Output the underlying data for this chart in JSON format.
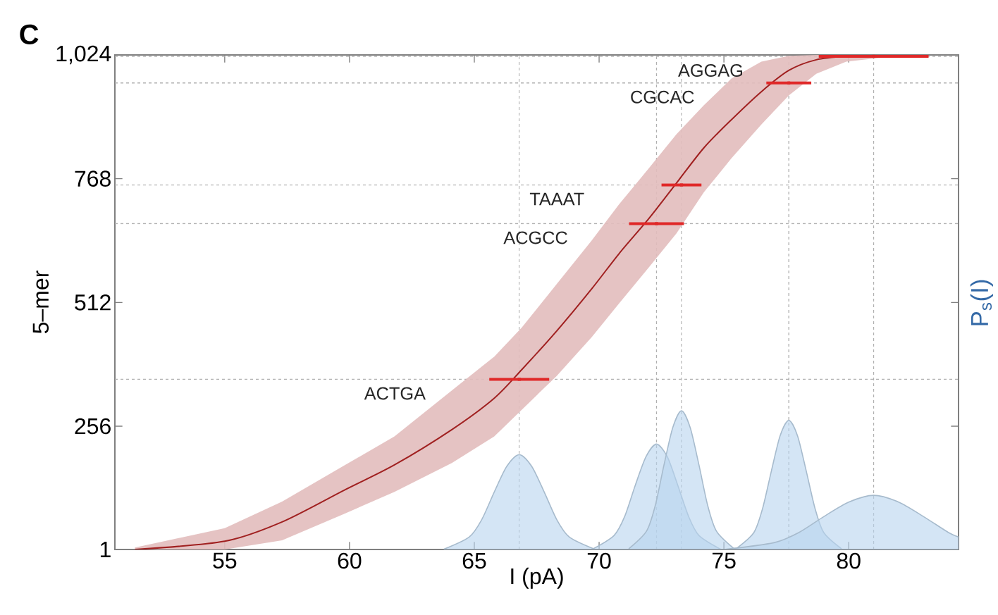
{
  "chart_data": {
    "type": "line",
    "xlabel": "I (pA)",
    "ylabel": "5–mer",
    "y2label": "P$_{s}$(I)",
    "xlim": [
      50.6,
      84.4
    ],
    "ylim": [
      1,
      1024
    ],
    "xticks": [
      55,
      60,
      65,
      70,
      75,
      80
    ],
    "yticks": [
      1,
      256,
      512,
      768,
      {
        "value": 1024,
        "label": "1,024"
      }
    ],
    "annotations": [
      "C",
      "ACTGA",
      "ACGCC",
      "TAAAT",
      "CGCAC",
      "AGGAG"
    ],
    "ref_lines": [
      {
        "axis": "y",
        "value": 353,
        "color": "#b0b0b0",
        "line_style": "dashed"
      },
      {
        "axis": "y",
        "value": 675,
        "color": "#b0b0b0",
        "line_style": "dashed"
      },
      {
        "axis": "y",
        "value": 755,
        "color": "#b0b0b0",
        "line_style": "dashed"
      },
      {
        "axis": "y",
        "value": 966,
        "color": "#b0b0b0",
        "line_style": "dashed"
      },
      {
        "axis": "y",
        "value": 1021,
        "color": "#b0b0b0",
        "line_style": "dashed"
      },
      {
        "axis": "x",
        "value": 66.8,
        "color": "#b0b0b0",
        "line_style": "dashed"
      },
      {
        "axis": "x",
        "value": 72.3,
        "color": "#b0b0b0",
        "line_style": "dashed"
      },
      {
        "axis": "x",
        "value": 73.3,
        "color": "#b0b0b0",
        "line_style": "dashed"
      },
      {
        "axis": "x",
        "value": 77.6,
        "color": "#b0b0b0",
        "line_style": "dashed"
      },
      {
        "axis": "x",
        "value": 81.0,
        "color": "#b0b0b0",
        "line_style": "dashed"
      }
    ],
    "series": [
      {
        "color": "#a02020",
        "x": [
          51.4,
          55,
          57.3,
          59.8,
          61.8,
          64.1,
          65.8,
          66.9,
          68.3,
          69.7,
          70.8,
          72.0,
          73.1,
          74.2,
          75.3,
          76.5,
          77.6,
          78.7,
          79.9,
          81.6,
          83.1
        ],
        "values": [
          1,
          18,
          58,
          124,
          176,
          249,
          314,
          373,
          453,
          540,
          613,
          686,
          759,
          832,
          890,
          948,
          992,
          1014,
          1021,
          1024,
          1024
        ],
        "lower": [
          1,
          1,
          20,
          75,
          120,
          180,
          235,
          290,
          360,
          440,
          510,
          585,
          655,
          740,
          810,
          880,
          940,
          985,
          1010,
          1020,
          1020
        ],
        "upper": [
          5,
          45,
          100,
          175,
          235,
          330,
          400,
          460,
          550,
          640,
          715,
          790,
          860,
          920,
          975,
          1010,
          1022,
          1024,
          1023,
          1024,
          1024
        ]
      },
      {
        "type": "scatter",
        "color": "#e02828",
        "marker": "square",
        "x": [
          66.8,
          72.3,
          73.3,
          77.6,
          81.0
        ],
        "values": [
          353,
          675,
          755,
          966,
          1021
        ],
        "xerrors": [
          1.2,
          1.1,
          0.8,
          0.9,
          2.2
        ]
      },
      {
        "type": "area",
        "color": "#b8d4ee",
        "x": [
          63.8,
          64.8,
          65.3,
          65.8,
          66.3,
          66.8,
          67.3,
          67.8,
          68.3,
          68.8,
          69.8
        ],
        "values": [
          2,
          27,
          63,
          120,
          173,
          197,
          173,
          120,
          63,
          27,
          2
        ]
      },
      {
        "type": "area",
        "color": "#b8d4ee",
        "x": [
          69.75,
          70.6,
          71.03,
          71.45,
          71.88,
          72.3,
          72.73,
          73.15,
          73.58,
          74.0,
          74.85
        ],
        "values": [
          2,
          30,
          70,
          134,
          193,
          219,
          193,
          134,
          70,
          30,
          2
        ]
      },
      {
        "type": "area",
        "color": "#b8d4ee",
        "x": [
          71.2,
          71.9,
          72.25,
          72.6,
          72.95,
          73.3,
          73.65,
          74.0,
          74.35,
          74.7,
          75.4
        ],
        "values": [
          3,
          39,
          92,
          176,
          253,
          288,
          253,
          176,
          92,
          39,
          3
        ]
      },
      {
        "type": "area",
        "color": "#b8d4ee",
        "x": [
          75.5,
          76.2,
          76.55,
          76.9,
          77.25,
          77.6,
          77.95,
          78.3,
          78.65,
          79.0,
          79.7
        ],
        "values": [
          3,
          36,
          86,
          163,
          236,
          268,
          236,
          163,
          86,
          36,
          3
        ]
      },
      {
        "type": "area",
        "color": "#b8d4ee",
        "x": [
          75,
          77,
          78,
          79,
          80,
          81,
          82,
          83,
          84,
          84.4
        ],
        "values": [
          1,
          15,
          36,
          69,
          99,
          113,
          99,
          69,
          36,
          27
        ]
      }
    ]
  }
}
